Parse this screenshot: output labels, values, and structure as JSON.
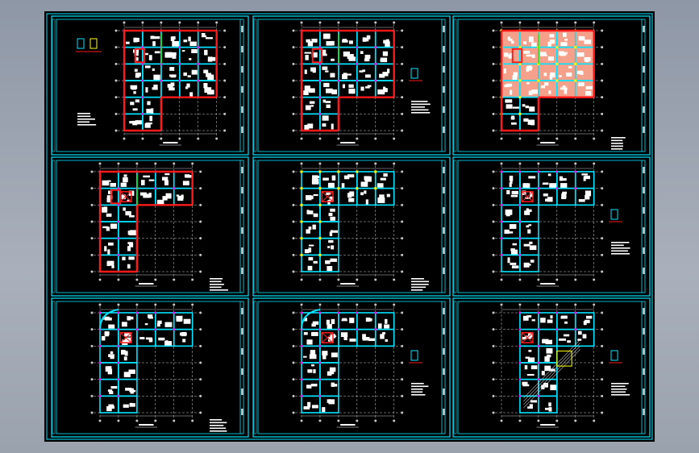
{
  "colors": {
    "background": "#000000",
    "frame": "#00e5ff",
    "wall": "#ff1a1a",
    "column": "#00e5ff",
    "grid": "#c8c8c8",
    "text": "#ffffff",
    "highlight_yellow": "#ffff00",
    "highlight_green": "#00ff00",
    "highlight_magenta": "#ff00ff",
    "fill_salmon": "#f4a08a"
  },
  "sheets": [
    {
      "id": "sheet-1",
      "plan": "rect-red",
      "detail": "left"
    },
    {
      "id": "sheet-2",
      "plan": "rect-red",
      "detail": "right"
    },
    {
      "id": "sheet-3",
      "plan": "rect-filled",
      "detail": "notes"
    },
    {
      "id": "sheet-4",
      "plan": "l-red",
      "detail": "notes"
    },
    {
      "id": "sheet-5",
      "plan": "l-cyan-yellow",
      "detail": "notes"
    },
    {
      "id": "sheet-6",
      "plan": "l-cyan",
      "detail": "right"
    },
    {
      "id": "sheet-7",
      "plan": "l-cyan-curve",
      "detail": "notes"
    },
    {
      "id": "sheet-8",
      "plan": "l-cyan-curve",
      "detail": "right"
    },
    {
      "id": "sheet-9",
      "plan": "t-cyan-diagonal",
      "detail": "right"
    }
  ]
}
